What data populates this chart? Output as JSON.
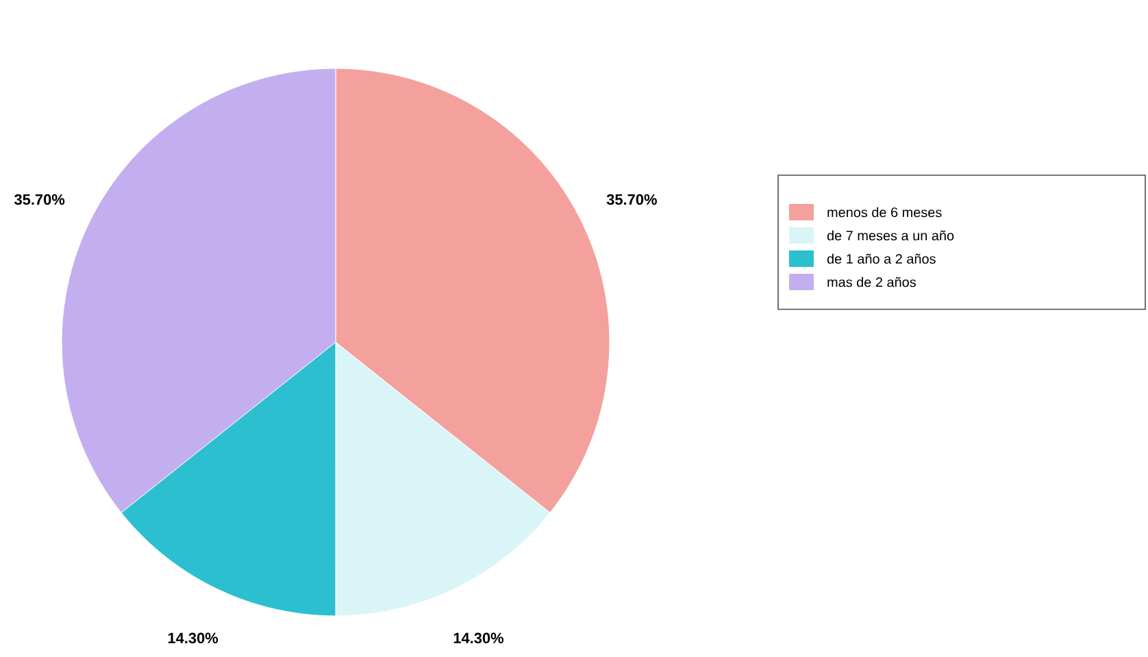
{
  "chart_data": {
    "type": "pie",
    "categories": [
      "menos de 6 meses",
      "de 7 meses a un año",
      "de 1 año a 2 años",
      "mas de 2 años"
    ],
    "values": [
      35.7,
      14.3,
      14.3,
      35.7
    ],
    "value_labels": [
      "35.70%",
      "14.30%",
      "14.30%",
      "35.70%"
    ],
    "colors": [
      "#f4a09c",
      "#d9f5f7",
      "#2bbfd0",
      "#c3aef0"
    ],
    "legend": "right"
  }
}
